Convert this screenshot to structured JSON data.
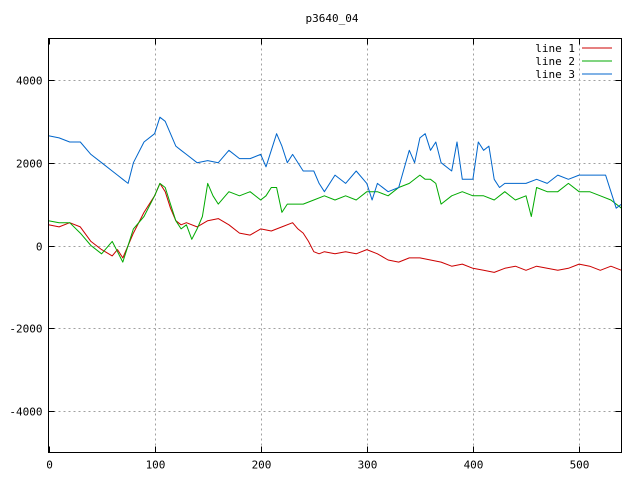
{
  "chart_data": {
    "type": "line",
    "title": "p3640_04",
    "xlabel": "",
    "ylabel": "",
    "xlim": [
      0,
      540
    ],
    "ylim": [
      -5000,
      5000
    ],
    "xticks": [
      0,
      100,
      200,
      300,
      400,
      500
    ],
    "yticks": [
      -4000,
      -2000,
      0,
      2000,
      4000
    ],
    "grid": true,
    "legend_position": "top-right",
    "series": [
      {
        "name": "line 1",
        "color": "#cc0000",
        "x": [
          0,
          10,
          20,
          30,
          40,
          50,
          60,
          65,
          70,
          80,
          90,
          100,
          105,
          110,
          115,
          120,
          125,
          130,
          140,
          150,
          160,
          170,
          180,
          190,
          200,
          210,
          220,
          230,
          235,
          240,
          245,
          250,
          255,
          260,
          270,
          280,
          290,
          300,
          310,
          320,
          330,
          340,
          350,
          360,
          370,
          380,
          390,
          400,
          410,
          420,
          430,
          440,
          450,
          460,
          470,
          480,
          490,
          500,
          510,
          520,
          530,
          540
        ],
        "y": [
          500,
          450,
          550,
          450,
          100,
          -100,
          -250,
          -100,
          -300,
          300,
          800,
          1200,
          1500,
          1300,
          900,
          600,
          500,
          550,
          450,
          600,
          650,
          500,
          300,
          250,
          400,
          350,
          450,
          550,
          400,
          300,
          100,
          -150,
          -200,
          -150,
          -200,
          -150,
          -200,
          -100,
          -200,
          -350,
          -400,
          -300,
          -300,
          -350,
          -400,
          -500,
          -450,
          -550,
          -600,
          -650,
          -550,
          -500,
          -600,
          -500,
          -550,
          -600,
          -550,
          -450,
          -500,
          -600,
          -500,
          -600
        ]
      },
      {
        "name": "line 2",
        "color": "#00aa00",
        "x": [
          0,
          10,
          20,
          30,
          40,
          50,
          60,
          65,
          70,
          80,
          90,
          100,
          105,
          110,
          115,
          120,
          125,
          130,
          135,
          140,
          145,
          150,
          155,
          160,
          170,
          180,
          190,
          200,
          205,
          210,
          215,
          220,
          225,
          230,
          240,
          250,
          260,
          270,
          280,
          290,
          300,
          310,
          320,
          330,
          340,
          350,
          355,
          360,
          365,
          370,
          380,
          390,
          400,
          410,
          420,
          430,
          440,
          450,
          455,
          460,
          470,
          480,
          490,
          500,
          510,
          520,
          530,
          540
        ],
        "y": [
          600,
          550,
          550,
          300,
          0,
          -200,
          100,
          -150,
          -400,
          400,
          700,
          1200,
          1500,
          1400,
          1000,
          600,
          400,
          500,
          150,
          400,
          700,
          1500,
          1200,
          1000,
          1300,
          1200,
          1300,
          1100,
          1200,
          1400,
          1400,
          800,
          1000,
          1000,
          1000,
          1100,
          1200,
          1100,
          1200,
          1100,
          1300,
          1300,
          1200,
          1400,
          1500,
          1700,
          1600,
          1600,
          1500,
          1000,
          1200,
          1300,
          1200,
          1200,
          1100,
          1300,
          1100,
          1200,
          700,
          1400,
          1300,
          1300,
          1500,
          1300,
          1300,
          1200,
          1100,
          900
        ]
      },
      {
        "name": "line 3",
        "color": "#0066cc",
        "x": [
          0,
          10,
          20,
          30,
          40,
          50,
          60,
          65,
          70,
          75,
          80,
          90,
          100,
          105,
          110,
          115,
          120,
          125,
          130,
          140,
          150,
          160,
          170,
          180,
          190,
          200,
          205,
          210,
          215,
          220,
          225,
          230,
          240,
          250,
          255,
          260,
          270,
          280,
          290,
          300,
          305,
          310,
          320,
          330,
          340,
          345,
          350,
          355,
          360,
          365,
          370,
          380,
          385,
          390,
          400,
          405,
          410,
          415,
          420,
          425,
          430,
          440,
          450,
          460,
          470,
          480,
          490,
          500,
          510,
          520,
          525,
          530,
          535,
          540
        ],
        "y": [
          2650,
          2600,
          2500,
          2500,
          2200,
          2000,
          1800,
          1700,
          1600,
          1500,
          2000,
          2500,
          2700,
          3100,
          3000,
          2700,
          2400,
          2300,
          2200,
          2000,
          2050,
          2000,
          2300,
          2100,
          2100,
          2200,
          1900,
          2300,
          2700,
          2400,
          2000,
          2200,
          1800,
          1800,
          1500,
          1300,
          1700,
          1500,
          1800,
          1500,
          1100,
          1500,
          1300,
          1400,
          2300,
          2000,
          2600,
          2700,
          2300,
          2500,
          2000,
          1800,
          2500,
          1600,
          1600,
          2500,
          2300,
          2400,
          1600,
          1400,
          1500,
          1500,
          1500,
          1600,
          1500,
          1700,
          1600,
          1700,
          1700,
          1700,
          1700,
          1300,
          900,
          1000
        ]
      }
    ]
  }
}
